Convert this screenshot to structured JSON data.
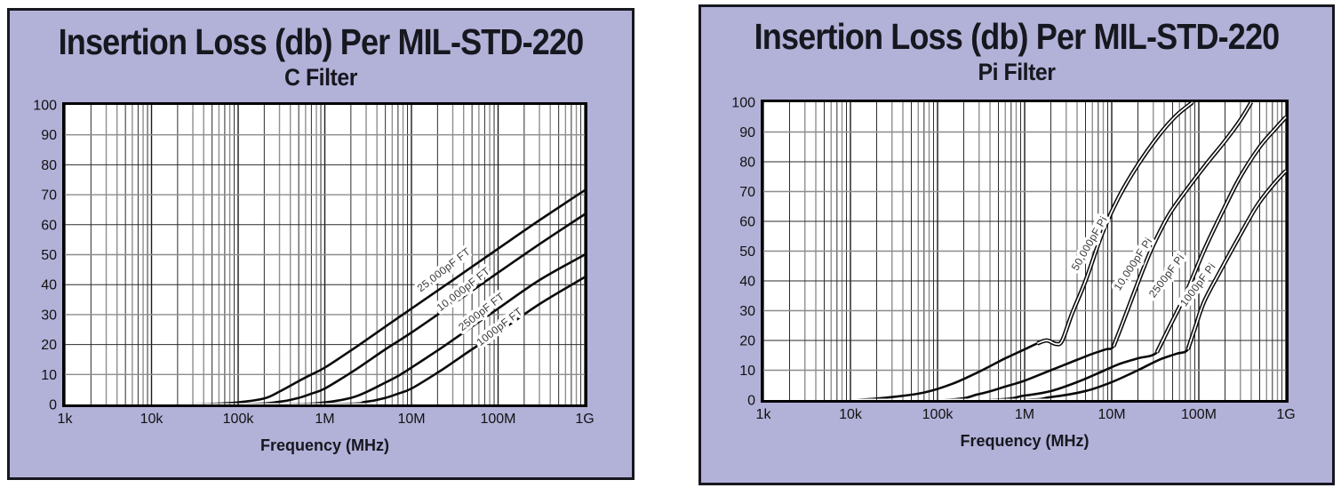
{
  "page": {
    "background": "#ffffff"
  },
  "colors": {
    "panel_bg": "#b2b1d8",
    "panel_border": "#17171f",
    "plot_bg": "#ffffff",
    "frame": "#000000",
    "grid_major": "#1a1a1a",
    "grid_minor_dark": "#2b2b2b",
    "grid_minor_gray": "#8f8f8f",
    "grid_h_gray": "#8c8c8c",
    "curve": "#0b0b0b",
    "curve_core": "#ffffff",
    "curve_label_text": "#3a3a3a",
    "tick_text": "#121212",
    "title_text": "#17171f"
  },
  "chart_data": [
    {
      "type": "line",
      "title": "Insertion Loss (db) Per MIL-STD-220",
      "subtitle": "C Filter",
      "xlabel": "Frequency (MHz)",
      "x_scale": "log",
      "x_range_hz": [
        1000,
        1000000000
      ],
      "ylim": [
        0,
        100
      ],
      "grid": true,
      "double_line": false,
      "x_ticks": [
        {
          "f": 1000.0,
          "label": "1k"
        },
        {
          "f": 10000.0,
          "label": "10k"
        },
        {
          "f": 100000.0,
          "label": "100k"
        },
        {
          "f": 1000000.0,
          "label": "1M"
        },
        {
          "f": 10000000.0,
          "label": "10M"
        },
        {
          "f": 100000000.0,
          "label": "100M"
        },
        {
          "f": 1000000000.0,
          "label": "1G"
        }
      ],
      "y_ticks": [
        0,
        10,
        20,
        30,
        40,
        50,
        60,
        70,
        80,
        90,
        100
      ],
      "series": [
        {
          "name": "25,000pF FT",
          "label_anchor": {
            "f": 25000000.0,
            "db": 44,
            "angle": -38
          },
          "points": [
            [
              1000.0,
              0
            ],
            [
              10000.0,
              0
            ],
            [
              50000.0,
              0.2
            ],
            [
              100000.0,
              0.7
            ],
            [
              200000.0,
              2
            ],
            [
              300000.0,
              4.3
            ],
            [
              500000.0,
              7.8
            ],
            [
              700000.0,
              10
            ],
            [
              1000000.0,
              12.3
            ],
            [
              2000000.0,
              18
            ],
            [
              3000000.0,
              21.5
            ],
            [
              5000000.0,
              26
            ],
            [
              10000000.0,
              32
            ],
            [
              30000000.0,
              41.5
            ],
            [
              100000000.0,
              52
            ],
            [
              300000000.0,
              61.5
            ],
            [
              1000000000.0,
              71.5
            ]
          ]
        },
        {
          "name": "10,000pF FT",
          "label_anchor": {
            "f": 42000000.0,
            "db": 37.5,
            "angle": -38
          },
          "points": [
            [
              1000.0,
              0
            ],
            [
              100000.0,
              0.1
            ],
            [
              300000.0,
              0.9
            ],
            [
              500000.0,
              2.2
            ],
            [
              700000.0,
              3.6
            ],
            [
              1000000.0,
              5.3
            ],
            [
              2000000.0,
              10.6
            ],
            [
              3000000.0,
              14
            ],
            [
              5000000.0,
              18.4
            ],
            [
              10000000.0,
              24
            ],
            [
              30000000.0,
              33.5
            ],
            [
              100000000.0,
              44
            ],
            [
              300000000.0,
              53.5
            ],
            [
              1000000000.0,
              63.5
            ]
          ]
        },
        {
          "name": "2500pF FT",
          "label_anchor": {
            "f": 68000000.0,
            "db": 30,
            "angle": -38
          },
          "points": [
            [
              1000.0,
              0
            ],
            [
              300000.0,
              0.1
            ],
            [
              1000000.0,
              0.7
            ],
            [
              2000000.0,
              2.2
            ],
            [
              3000000.0,
              4.1
            ],
            [
              5000000.0,
              7.3
            ],
            [
              7000000.0,
              9.5
            ],
            [
              10000000.0,
              12.3
            ],
            [
              20000000.0,
              18
            ],
            [
              30000000.0,
              21.5
            ],
            [
              50000000.0,
              26
            ],
            [
              100000000.0,
              32
            ],
            [
              300000000.0,
              41.5
            ],
            [
              1000000000.0,
              50
            ]
          ]
        },
        {
          "name": "1000pF FT",
          "label_anchor": {
            "f": 110000000.0,
            "db": 25,
            "angle": -38
          },
          "points": [
            [
              1000.0,
              0
            ],
            [
              1000000.0,
              0.1
            ],
            [
              3000000.0,
              0.9
            ],
            [
              5000000.0,
              2.2
            ],
            [
              7000000.0,
              3.6
            ],
            [
              10000000.0,
              5.3
            ],
            [
              20000000.0,
              10.6
            ],
            [
              30000000.0,
              14
            ],
            [
              50000000.0,
              18.4
            ],
            [
              100000000.0,
              24
            ],
            [
              300000000.0,
              33.5
            ],
            [
              1000000000.0,
              42.5
            ]
          ]
        }
      ]
    },
    {
      "type": "line",
      "title": "Insertion Loss (db) Per MIL-STD-220",
      "subtitle": "Pi Filter",
      "xlabel": "Frequency (MHz)",
      "x_scale": "log",
      "x_range_hz": [
        1000,
        1000000000
      ],
      "ylim": [
        0,
        100
      ],
      "grid": true,
      "double_line": true,
      "x_ticks": [
        {
          "f": 1000.0,
          "label": "1k"
        },
        {
          "f": 10000.0,
          "label": "10k"
        },
        {
          "f": 100000.0,
          "label": "100k"
        },
        {
          "f": 1000000.0,
          "label": "1M"
        },
        {
          "f": 10000000.0,
          "label": "10M"
        },
        {
          "f": 100000000.0,
          "label": "100M"
        },
        {
          "f": 1000000000.0,
          "label": "1G"
        }
      ],
      "y_ticks": [
        0,
        10,
        20,
        30,
        40,
        50,
        60,
        70,
        80,
        90,
        100
      ],
      "series": [
        {
          "name": "50,000pF Pi",
          "label_anchor": {
            "f": 6000000.0,
            "db": 52,
            "angle": -60
          },
          "core_from": 1200000.0,
          "points": [
            [
              1000.0,
              0
            ],
            [
              10000.0,
              0
            ],
            [
              30000.0,
              1
            ],
            [
              70000.0,
              2.5
            ],
            [
              150000.0,
              5.5
            ],
            [
              300000.0,
              9.5
            ],
            [
              600000.0,
              14
            ],
            [
              1000000.0,
              17
            ],
            [
              1400000.0,
              19
            ],
            [
              1800000.0,
              20
            ],
            [
              2300000.0,
              18.8
            ],
            [
              2700000.0,
              20
            ],
            [
              3500000.0,
              29
            ],
            [
              5000000.0,
              40
            ],
            [
              7800000.0,
              56
            ],
            [
              12000000.0,
              68
            ],
            [
              20000000.0,
              79
            ],
            [
              35000000.0,
              89
            ],
            [
              55000000.0,
              95.5
            ],
            [
              85000000.0,
              100
            ]
          ]
        },
        {
          "name": "10,000pF Pi",
          "label_anchor": {
            "f": 19000000.0,
            "db": 45,
            "angle": -57
          },
          "core_from": 10000000.0,
          "points": [
            [
              1000.0,
              0
            ],
            [
              100000.0,
              0
            ],
            [
              300000.0,
              2
            ],
            [
              600000.0,
              4.5
            ],
            [
              1000000.0,
              6.5
            ],
            [
              2000000.0,
              10
            ],
            [
              4000000.0,
              13.5
            ],
            [
              6000000.0,
              15.5
            ],
            [
              8500000.0,
              17
            ],
            [
              10500000.0,
              18
            ],
            [
              13000000.0,
              25
            ],
            [
              17000000.0,
              34
            ],
            [
              23000000.0,
              44
            ],
            [
              30000000.0,
              52
            ],
            [
              45000000.0,
              62
            ],
            [
              70000000.0,
              70
            ],
            [
              120000000.0,
              79
            ],
            [
              200000000.0,
              87
            ],
            [
              300000000.0,
              94
            ],
            [
              400000000.0,
              100
            ]
          ]
        },
        {
          "name": "2500pF Pi",
          "label_anchor": {
            "f": 46000000.0,
            "db": 41,
            "angle": -53
          },
          "core_from": 32000000.0,
          "points": [
            [
              1000.0,
              0
            ],
            [
              300000.0,
              0
            ],
            [
              1000000.0,
              1.5
            ],
            [
              2000000.0,
              3
            ],
            [
              4000000.0,
              6
            ],
            [
              7000000.0,
              9
            ],
            [
              12000000.0,
              12
            ],
            [
              20000000.0,
              14
            ],
            [
              33000000.0,
              16
            ],
            [
              45000000.0,
              24
            ],
            [
              69000000.0,
              35
            ],
            [
              118000000.0,
              51
            ],
            [
              200000000.0,
              65
            ],
            [
              300000000.0,
              75
            ],
            [
              500000000.0,
              85
            ],
            [
              750000000.0,
              91
            ],
            [
              1000000000.0,
              95
            ]
          ]
        },
        {
          "name": "1000pF Pi",
          "label_anchor": {
            "f": 105000000.0,
            "db": 38,
            "angle": -53
          },
          "core_from": 72000000.0,
          "points": [
            [
              1000.0,
              0
            ],
            [
              600000.0,
              0
            ],
            [
              2000000.0,
              1
            ],
            [
              5000000.0,
              3
            ],
            [
              10000000.0,
              6
            ],
            [
              20000000.0,
              10
            ],
            [
              35000000.0,
              13.5
            ],
            [
              55000000.0,
              15.5
            ],
            [
              75000000.0,
              17
            ],
            [
              90000000.0,
              24
            ],
            [
              115000000.0,
              33
            ],
            [
              174000000.0,
              43
            ],
            [
              280000000.0,
              54
            ],
            [
              460000000.0,
              65
            ],
            [
              700000000.0,
              72
            ],
            [
              1000000000.0,
              77
            ]
          ]
        }
      ]
    }
  ]
}
